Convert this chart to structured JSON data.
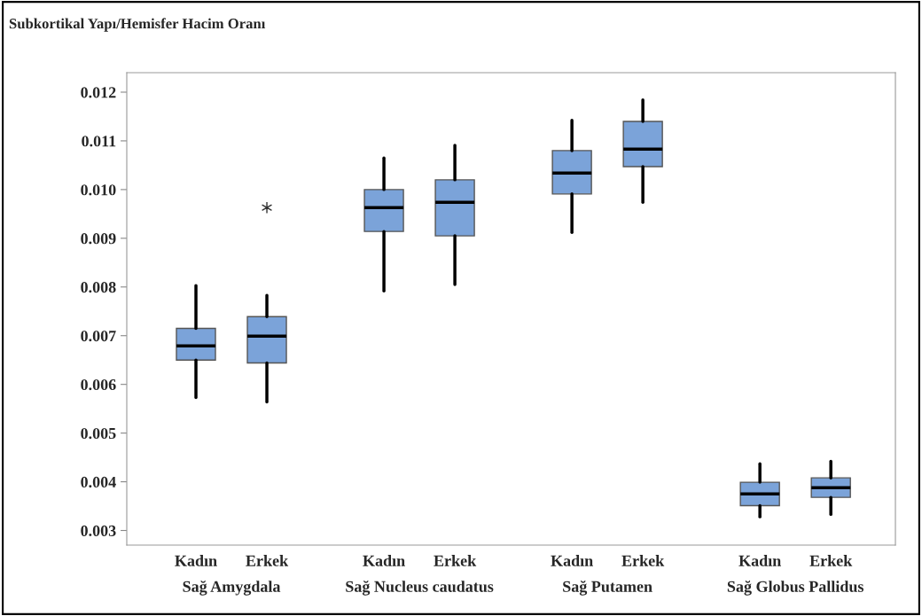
{
  "chart_data": {
    "type": "box",
    "title": "Subkortikal Yapı/Hemisfer Hacim Oranı",
    "categories": [
      "Kadın",
      "Erkek",
      "Kadın",
      "Erkek",
      "Kadın",
      "Erkek",
      "Kadın",
      "Erkek"
    ],
    "annotations": [
      "Sağ Amygdala",
      "Sağ Nucleus caudatus",
      "Sağ Putamen",
      "Sağ Globus Pallidus"
    ],
    "color": "#7ba3d9",
    "boxes": [
      {
        "low": 0.00573,
        "q1": 0.0065,
        "median": 0.00679,
        "q3": 0.00715,
        "high": 0.00803
      },
      {
        "low": 0.00564,
        "q1": 0.00644,
        "median": 0.00699,
        "q3": 0.00739,
        "high": 0.00783,
        "outliers": [
          0.00963
        ]
      },
      {
        "low": 0.00792,
        "q1": 0.00914,
        "median": 0.00963,
        "q3": 0.01,
        "high": 0.01065
      },
      {
        "low": 0.00805,
        "q1": 0.00905,
        "median": 0.00974,
        "q3": 0.0102,
        "high": 0.01091
      },
      {
        "low": 0.00912,
        "q1": 0.00991,
        "median": 0.01034,
        "q3": 0.0108,
        "high": 0.01142
      },
      {
        "low": 0.00974,
        "q1": 0.01047,
        "median": 0.01083,
        "q3": 0.0114,
        "high": 0.01184
      },
      {
        "low": 0.00328,
        "q1": 0.00351,
        "median": 0.00375,
        "q3": 0.00399,
        "high": 0.00437
      },
      {
        "low": 0.00333,
        "q1": 0.00368,
        "median": 0.00388,
        "q3": 0.00408,
        "high": 0.00442
      }
    ],
    "ylim": [
      0.0027,
      0.0124
    ],
    "yticks": [
      {
        "value": 0.003,
        "label": "0.003"
      },
      {
        "value": 0.004,
        "label": "0.004"
      },
      {
        "value": 0.005,
        "label": "0.005"
      },
      {
        "value": 0.006,
        "label": "0.006"
      },
      {
        "value": 0.007,
        "label": "0.007"
      },
      {
        "value": 0.008,
        "label": "0.008"
      },
      {
        "value": 0.009,
        "label": "0.009"
      },
      {
        "value": 0.01,
        "label": "0.010"
      },
      {
        "value": 0.011,
        "label": "0.011"
      },
      {
        "value": 0.012,
        "label": "0.012"
      }
    ],
    "grid": false
  }
}
